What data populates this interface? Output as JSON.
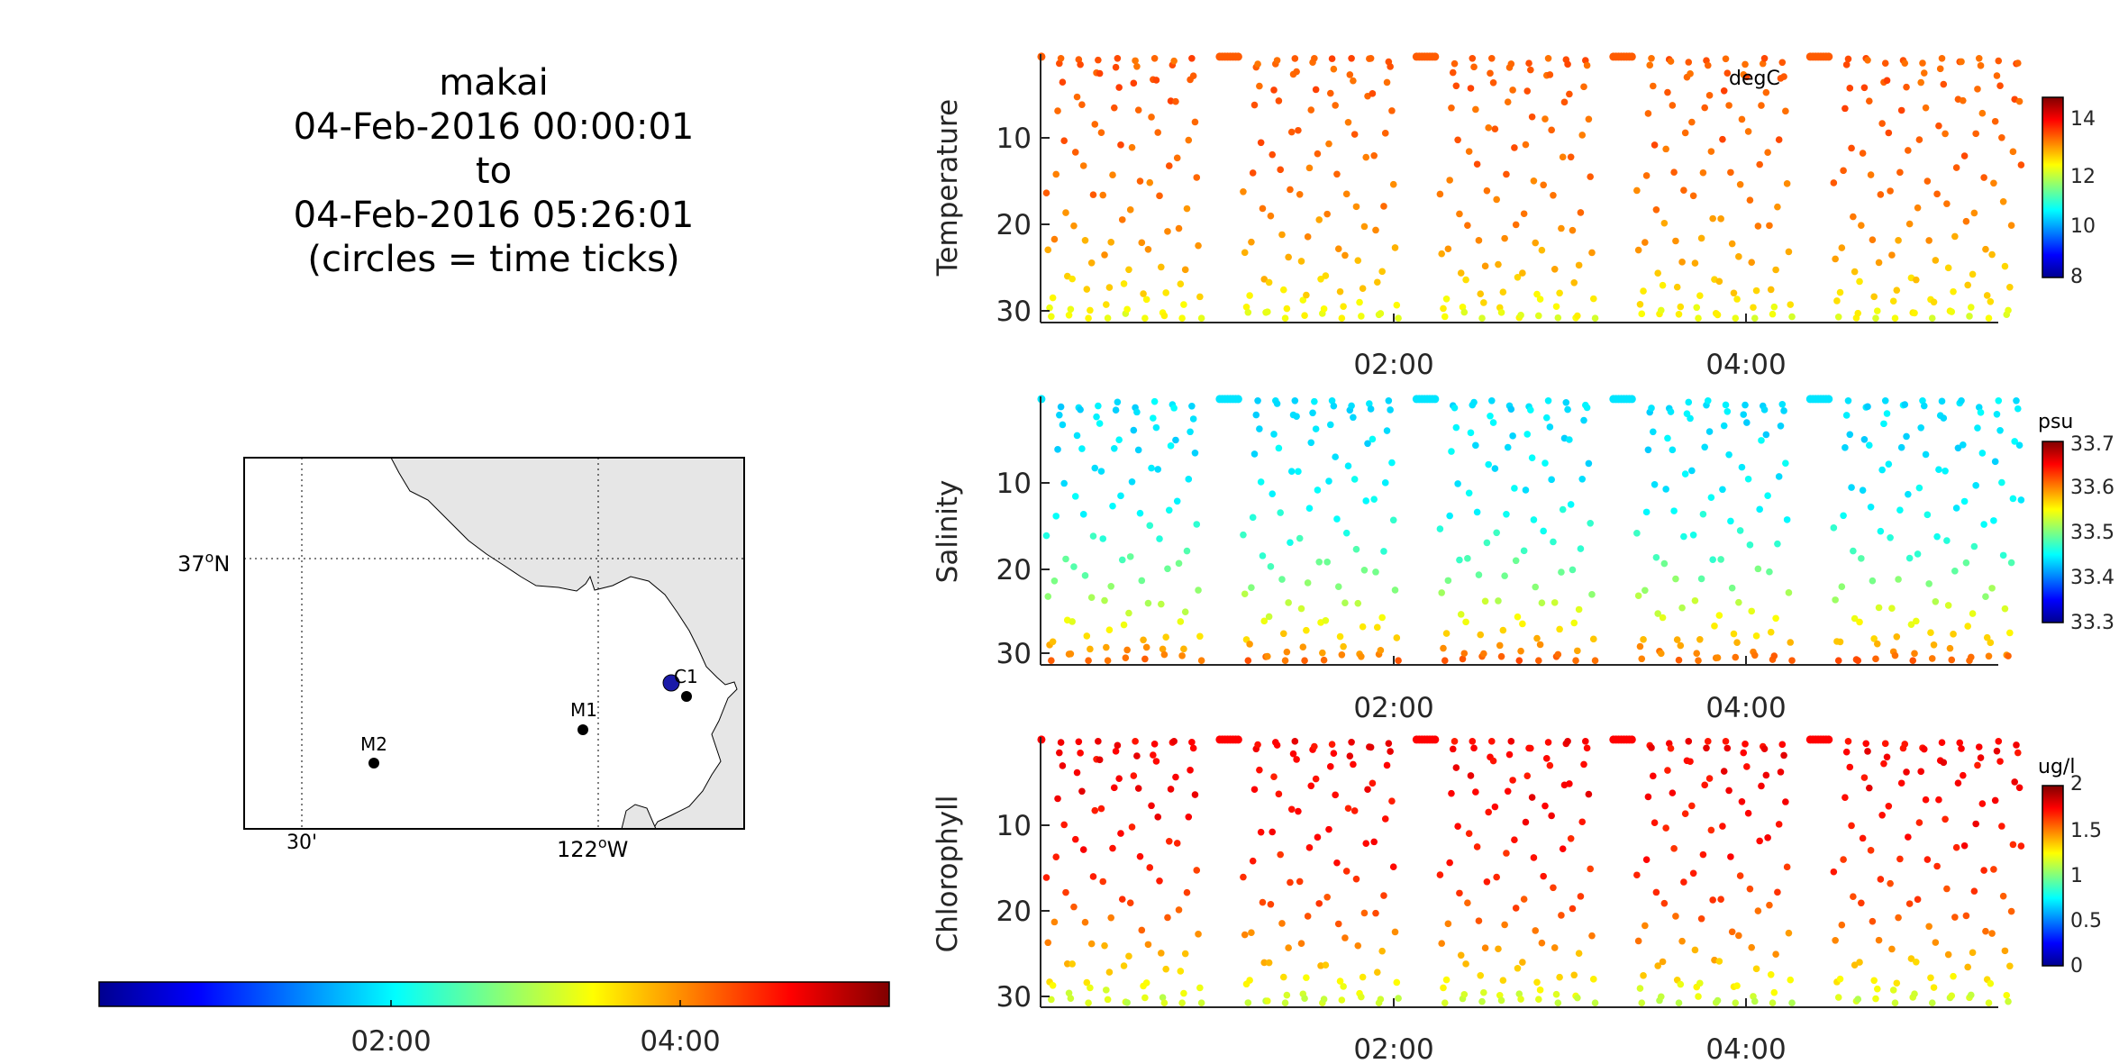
{
  "title": {
    "lines": [
      "makai",
      "04-Feb-2016 00:00:01",
      "to",
      "04-Feb-2016 05:26:01",
      "(circles = time ticks)"
    ]
  },
  "map": {
    "lat_label": "37",
    "lat_suffix": "N",
    "lon_labels": [
      {
        "text": "30'"
      },
      {
        "text": "122",
        "suffix": "W"
      }
    ],
    "degree_mark": "o",
    "stations": [
      {
        "name": "C1"
      },
      {
        "name": "M1"
      },
      {
        "name": "M2"
      }
    ],
    "colors": {
      "land": "#e6e6e6",
      "station": "#000000",
      "track": "#1a1aa8"
    }
  },
  "time_colorbar": {
    "ticks": [
      "02:00",
      "04:00"
    ]
  },
  "panels": [
    {
      "ylabel": "Temperature",
      "unit": "degC",
      "yticks": [
        "10",
        "20",
        "30"
      ],
      "cbar_ticks": [
        "14",
        "12",
        "10",
        "8"
      ],
      "xticks": [
        "02:00",
        "04:00"
      ]
    },
    {
      "ylabel": "Salinity",
      "unit": "psu",
      "yticks": [
        "10",
        "20",
        "30"
      ],
      "cbar_ticks": [
        "33.7",
        "33.6",
        "33.5",
        "33.4",
        "33.3"
      ],
      "xticks": [
        "02:00",
        "04:00"
      ]
    },
    {
      "ylabel": "Chlorophyll",
      "unit": "ug/l",
      "yticks": [
        "10",
        "20",
        "30"
      ],
      "cbar_ticks": [
        "2",
        "1.5",
        "1",
        "0.5",
        "0"
      ],
      "xticks": [
        "02:00",
        "04:00"
      ]
    }
  ],
  "chart_data": [
    {
      "type": "scatter",
      "ylabel": "Temperature",
      "colorbar_label": "degC",
      "clim": [
        8,
        15
      ],
      "x_range": [
        "00:00:01",
        "05:26:01"
      ],
      "ylim": [
        0,
        31
      ],
      "y_reversed": true,
      "yticks": [
        10,
        20,
        30
      ],
      "xticks": [
        "02:00",
        "04:00"
      ],
      "typical_value": 13.4,
      "series": [
        {
          "profile_times": [
            "00:00",
            "01:07",
            "02:14",
            "03:21",
            "04:28"
          ],
          "surface_value": 13.5,
          "bottom_value": 12.2
        }
      ]
    },
    {
      "type": "scatter",
      "ylabel": "Salinity",
      "colorbar_label": "psu",
      "clim": [
        33.3,
        33.7
      ],
      "x_range": [
        "00:00:01",
        "05:26:01"
      ],
      "ylim": [
        0,
        31
      ],
      "y_reversed": true,
      "yticks": [
        10,
        20,
        30
      ],
      "xticks": [
        "02:00",
        "04:00"
      ],
      "typical_value": 33.44,
      "series": [
        {
          "profile_times": [
            "00:00",
            "01:07",
            "02:14",
            "03:21",
            "04:28"
          ],
          "surface_value": 33.44,
          "bottom_value": 33.62
        }
      ]
    },
    {
      "type": "scatter",
      "ylabel": "Chlorophyll",
      "colorbar_label": "ug/l",
      "clim": [
        0,
        2
      ],
      "x_range": [
        "00:00:01",
        "05:26:01"
      ],
      "ylim": [
        0,
        31
      ],
      "y_reversed": true,
      "yticks": [
        10,
        20,
        30
      ],
      "xticks": [
        "02:00",
        "04:00"
      ],
      "typical_value": 1.65,
      "series": [
        {
          "profile_times": [
            "00:00",
            "01:07",
            "02:14",
            "03:21",
            "04:28"
          ],
          "surface_value": 1.75,
          "bottom_value": 1.1
        }
      ]
    }
  ]
}
